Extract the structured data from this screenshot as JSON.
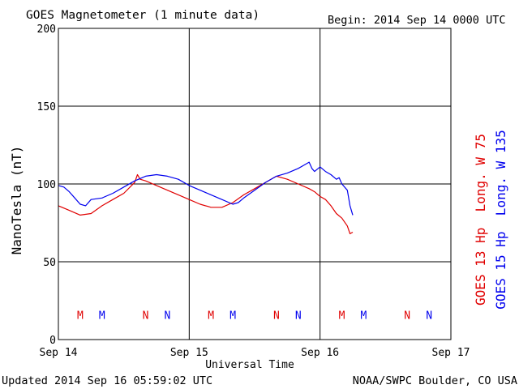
{
  "header": {
    "title": "GOES Magnetometer (1 minute data)",
    "begin": "Begin:  2014 Sep 14 0000 UTC"
  },
  "footer": {
    "updated": "Updated 2014 Sep 16 05:59:02 UTC",
    "credit": "NOAA/SWPC Boulder, CO USA"
  },
  "chart_data": {
    "type": "line",
    "title": "GOES Magnetometer (1 minute data)",
    "xlabel": "Universal Time",
    "ylabel": "NanoTesla (nT)",
    "ylim": [
      0,
      200
    ],
    "yticks": [
      0,
      50,
      100,
      150,
      200
    ],
    "xlim_hours": [
      0,
      72
    ],
    "xticks": [
      {
        "hour": 0,
        "label": "Sep 14"
      },
      {
        "hour": 24,
        "label": "Sep 15"
      },
      {
        "hour": 48,
        "label": "Sep 16"
      },
      {
        "hour": 72,
        "label": "Sep 17"
      }
    ],
    "grid": true,
    "colors": {
      "goes13": "#e00000",
      "goes15": "#0000ee"
    },
    "legend": [
      {
        "label": "GOES 13 Hp  Long. W 75",
        "color": "#e00000"
      },
      {
        "label": "GOES 15 Hp  Long. W 135",
        "color": "#0000ee"
      }
    ],
    "series": [
      {
        "name": "GOES 13 Hp",
        "color": "#e00000",
        "x_hours": [
          0,
          2,
          4,
          6,
          8,
          10,
          12,
          14,
          14.5,
          15,
          16,
          18,
          20,
          22,
          24,
          26,
          28,
          30,
          32,
          34,
          36,
          38,
          40,
          42,
          44,
          46,
          47,
          48,
          49,
          50,
          51,
          52,
          53,
          53.5,
          54
        ],
        "values": [
          86,
          83,
          80,
          81,
          86,
          90,
          94,
          101,
          106,
          103,
          102,
          99,
          96,
          93,
          90,
          87,
          85,
          85,
          88,
          93,
          97,
          101,
          105,
          103,
          100,
          97,
          95,
          92,
          90,
          86,
          81,
          78,
          73,
          68,
          69
        ]
      },
      {
        "name": "GOES 15 Hp",
        "color": "#0000ee",
        "x_hours": [
          0,
          1,
          2,
          3,
          4,
          5,
          6,
          8,
          10,
          12,
          14,
          16,
          18,
          20,
          22,
          24,
          26,
          28,
          30,
          32,
          33,
          34,
          36,
          38,
          40,
          42,
          44,
          45,
          46,
          46.5,
          47,
          48,
          49,
          50,
          51,
          51.5,
          52,
          53,
          53.5,
          54
        ],
        "values": [
          99,
          98,
          95,
          91,
          87,
          86,
          90,
          91,
          94,
          98,
          102,
          105,
          106,
          105,
          103,
          99,
          96,
          93,
          90,
          87,
          88,
          91,
          96,
          101,
          105,
          107,
          110,
          112,
          114,
          110,
          108,
          111,
          108,
          106,
          103,
          104,
          100,
          96,
          86,
          80
        ]
      }
    ],
    "markers": [
      {
        "label": "M",
        "hour": 4,
        "color": "#e00000"
      },
      {
        "label": "M",
        "hour": 8,
        "color": "#0000ee"
      },
      {
        "label": "N",
        "hour": 16,
        "color": "#e00000"
      },
      {
        "label": "N",
        "hour": 20,
        "color": "#0000ee"
      },
      {
        "label": "M",
        "hour": 28,
        "color": "#e00000"
      },
      {
        "label": "M",
        "hour": 32,
        "color": "#0000ee"
      },
      {
        "label": "N",
        "hour": 40,
        "color": "#e00000"
      },
      {
        "label": "N",
        "hour": 44,
        "color": "#0000ee"
      },
      {
        "label": "M",
        "hour": 52,
        "color": "#e00000"
      },
      {
        "label": "M",
        "hour": 56,
        "color": "#0000ee"
      },
      {
        "label": "N",
        "hour": 64,
        "color": "#e00000"
      },
      {
        "label": "N",
        "hour": 68,
        "color": "#0000ee"
      }
    ],
    "marker_level": 16
  }
}
